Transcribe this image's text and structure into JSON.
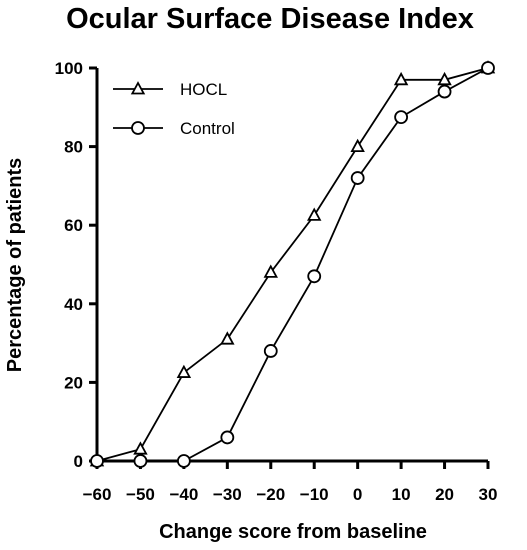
{
  "chart_data": {
    "type": "line",
    "title": "Ocular Surface Disease Index",
    "xlabel": "Change score from baseline",
    "ylabel": "Percentage of patients",
    "xlim": [
      -60,
      30
    ],
    "ylim": [
      0,
      100
    ],
    "xticks": [
      -60,
      -50,
      -40,
      -30,
      -20,
      -10,
      0,
      10,
      20,
      30
    ],
    "yticks": [
      0,
      20,
      40,
      60,
      80,
      100
    ],
    "xtick_labels": [
      "−60",
      "−50",
      "−40",
      "−30",
      "−20",
      "−10",
      "0",
      "10",
      "20",
      "30"
    ],
    "ytick_labels": [
      "0",
      "20",
      "40",
      "60",
      "80",
      "100"
    ],
    "grid": false,
    "legend_position": "top-left",
    "series": [
      {
        "name": "HOCL",
        "marker": "triangle",
        "color": "#000000",
        "x": [
          -60,
          -50,
          -40,
          -30,
          -20,
          -10,
          0,
          10,
          20,
          30
        ],
        "y": [
          0,
          3,
          22.5,
          31,
          48,
          62.5,
          80,
          97,
          97,
          100
        ]
      },
      {
        "name": "Control",
        "marker": "circle",
        "color": "#000000",
        "x": [
          -60,
          -50,
          -40,
          -30,
          -20,
          -10,
          0,
          10,
          20,
          30
        ],
        "y": [
          0,
          0,
          0,
          6,
          28,
          47,
          72,
          87.5,
          94,
          100
        ]
      }
    ]
  }
}
